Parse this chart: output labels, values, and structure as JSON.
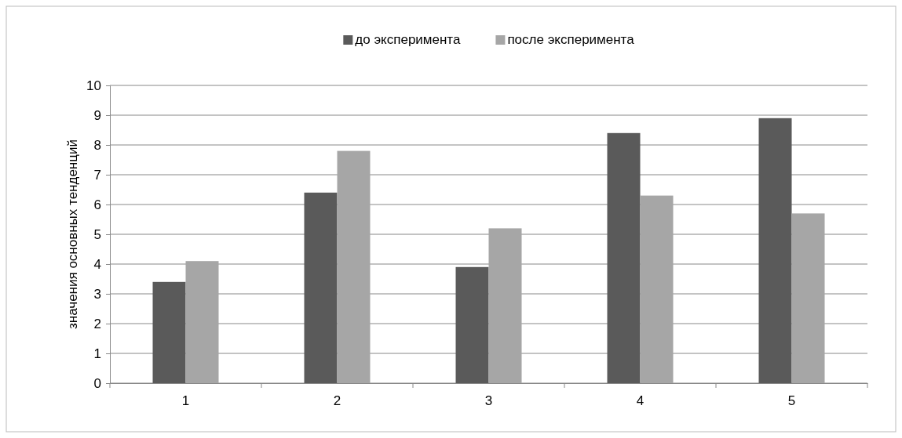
{
  "chart_data": {
    "type": "bar",
    "ylabel": "значения  основных тенденций",
    "categories": [
      "1",
      "2",
      "3",
      "4",
      "5"
    ],
    "series": [
      {
        "name": "до эксперимента",
        "color": "#5a5a5a",
        "values": [
          3.4,
          6.4,
          3.9,
          8.4,
          8.9
        ]
      },
      {
        "name": "после эксперимента",
        "color": "#a6a6a6",
        "values": [
          4.1,
          7.8,
          5.2,
          6.3,
          5.7
        ]
      }
    ],
    "ylim": [
      0,
      10
    ],
    "yticks": [
      0,
      1,
      2,
      3,
      4,
      5,
      6,
      7,
      8,
      9,
      10
    ],
    "grid": "y",
    "legend": "top"
  }
}
